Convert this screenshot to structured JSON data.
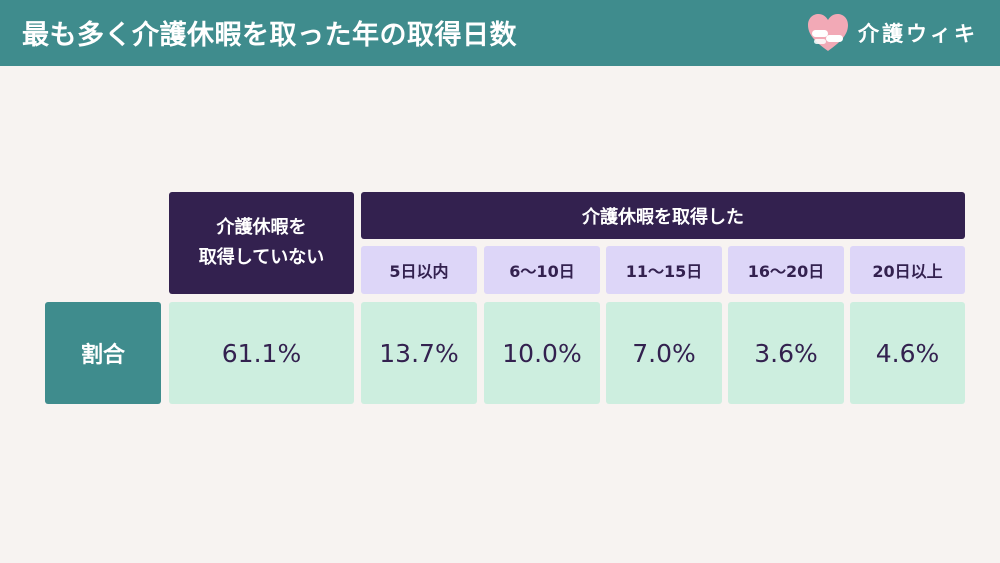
{
  "header": {
    "title": "最も多く介護休暇を取った年の取得日数",
    "brand": "介護ウィキ",
    "brand_icon": "heart-hands-icon"
  },
  "colors": {
    "header_bg": "#3f8c8d",
    "page_bg": "#f7f3f1",
    "dark_header": "#33214f",
    "subheader": "#ddd6f8",
    "value_cell": "#cdeedf"
  },
  "chart_data": {
    "type": "table",
    "row_label": "割合",
    "not_taken": {
      "label_line1": "介護休暇を",
      "label_line2": "取得していない",
      "value": "61.1%"
    },
    "taken": {
      "label": "介護休暇を取得した",
      "categories": [
        "5日以内",
        "6〜10日",
        "11〜15日",
        "16〜20日",
        "20日以上"
      ],
      "values": [
        "13.7%",
        "10.0%",
        "7.0%",
        "3.6%",
        "4.6%"
      ]
    }
  }
}
